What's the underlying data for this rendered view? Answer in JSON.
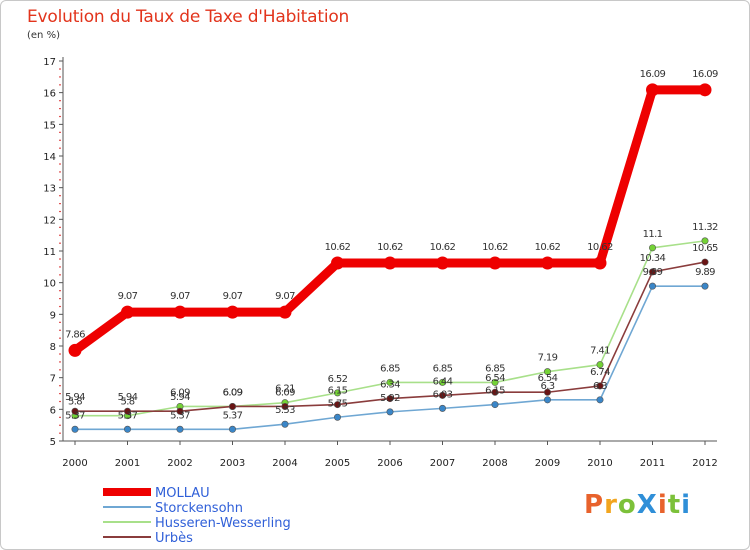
{
  "title": "Evolution du Taux de Taxe d'Habitation",
  "unit": "(en %)",
  "logo_text": "ProXiti",
  "colors": {
    "title": "#e2341c",
    "legend_text": "#2f5fd8",
    "axis": "#555555"
  },
  "chart_data": {
    "type": "line",
    "x": [
      "2000",
      "2001",
      "2002",
      "2003",
      "2004",
      "2005",
      "2006",
      "2007",
      "2008",
      "2009",
      "2010",
      "2011",
      "2012"
    ],
    "yticks": [
      "5",
      "6",
      "7",
      "8",
      "9",
      "10",
      "11",
      "12",
      "13",
      "14",
      "15",
      "16",
      "17"
    ],
    "ylim": [
      5,
      17
    ],
    "grid": false,
    "legend_position": "bottom-left",
    "series": [
      {
        "name": "MOLLAU",
        "color": "#ee0000",
        "marker_color": "#ee0000",
        "values": [
          7.86,
          9.07,
          9.07,
          9.07,
          9.07,
          10.62,
          10.62,
          10.62,
          10.62,
          10.62,
          10.62,
          16.09,
          16.09
        ],
        "labels": [
          "7.86",
          "9.07",
          "9.07",
          "9.07",
          "9.07",
          "10.62",
          "10.62",
          "10.62",
          "10.62",
          "10.62",
          "10.62",
          "16.09",
          "16.09"
        ]
      },
      {
        "name": "Storckensohn",
        "color": "#6fa7d3",
        "marker_color": "#3a86c8",
        "values": [
          5.37,
          5.37,
          5.37,
          5.37,
          5.53,
          5.75,
          5.92,
          6.03,
          6.15,
          6.3,
          6.3,
          9.89,
          9.89
        ],
        "labels": [
          "5.37",
          "5.37",
          "5.37",
          "5.37",
          "5.53",
          "5.75",
          "5.92",
          "6.03",
          "6.15",
          "6.3",
          "6.3",
          "9.89",
          "9.89"
        ]
      },
      {
        "name": "Husseren-Wesserling",
        "color": "#a8e08a",
        "marker_color": "#74d236",
        "values": [
          5.8,
          5.8,
          6.09,
          6.09,
          6.21,
          6.52,
          6.85,
          6.85,
          6.85,
          7.19,
          7.41,
          11.1,
          11.32
        ],
        "labels": [
          "5.8",
          "5.8",
          "6.09",
          "6.09",
          "6.21",
          "6.52",
          "6.85",
          "6.85",
          "6.85",
          "7.19",
          "7.41",
          "11.1",
          "11.32"
        ]
      },
      {
        "name": "Urbès",
        "color": "#8a3c3c",
        "marker_color": "#6a1414",
        "values": [
          5.94,
          5.94,
          5.94,
          6.09,
          6.09,
          6.15,
          6.34,
          6.44,
          6.54,
          6.54,
          6.74,
          10.34,
          10.65
        ],
        "labels": [
          "5.94",
          "5.94",
          "5.94",
          "6.09",
          "6.09",
          "6.15",
          "6.34",
          "6.44",
          "6.54",
          "6.54",
          "6.74",
          "10.34",
          "10.65"
        ]
      }
    ]
  }
}
